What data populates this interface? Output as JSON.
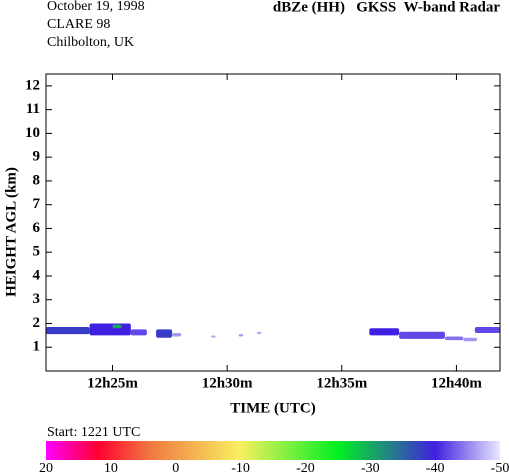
{
  "chart_data": {
    "type": "heatmap",
    "header": [
      "October 19, 1998",
      "CLARE 98",
      "Chilbolton, UK"
    ],
    "title": "dBZe (HH)   GKSS  W-band Radar",
    "x_label": "TIME (UTC)",
    "y_label": "HEIGHT AGL (km)",
    "start_label": "Start: 1221 UTC",
    "xlim": [
      22.1,
      41.9
    ],
    "xticks": [
      {
        "value": 25,
        "label": "12h25m"
      },
      {
        "value": 30,
        "label": "12h30m"
      },
      {
        "value": 35,
        "label": "12h35m"
      },
      {
        "value": 40,
        "label": "12h40m"
      }
    ],
    "ylim": [
      0,
      12.5
    ],
    "yticks": [
      1,
      2,
      3,
      4,
      5,
      6,
      7,
      8,
      9,
      10,
      11,
      12
    ],
    "clim": [
      20,
      -50
    ],
    "cticks": [
      20,
      10,
      0,
      -10,
      -20,
      -30,
      -40,
      -50
    ],
    "colormap": [
      {
        "value": 20,
        "color": "#ff00ff"
      },
      {
        "value": 12,
        "color": "#ff0030"
      },
      {
        "value": 4,
        "color": "#f07840"
      },
      {
        "value": -10,
        "color": "#f8f060"
      },
      {
        "value": -25,
        "color": "#00f020"
      },
      {
        "value": -40,
        "color": "#4020e0"
      },
      {
        "value": -50,
        "color": "#e8e8ff"
      }
    ],
    "cells": [
      {
        "x0": 22.1,
        "x1": 24.0,
        "y0": 1.55,
        "y1": 1.85,
        "value": -38
      },
      {
        "x0": 24.0,
        "x1": 25.8,
        "y0": 1.5,
        "y1": 2.0,
        "value": -40
      },
      {
        "x0": 25.0,
        "x1": 25.4,
        "y0": 1.8,
        "y1": 1.95,
        "value": -30
      },
      {
        "x0": 25.8,
        "x1": 26.5,
        "y0": 1.5,
        "y1": 1.75,
        "value": -42
      },
      {
        "x0": 26.9,
        "x1": 27.6,
        "y0": 1.4,
        "y1": 1.75,
        "value": -38
      },
      {
        "x0": 27.6,
        "x1": 28.0,
        "y0": 1.45,
        "y1": 1.6,
        "value": -46
      },
      {
        "x0": 29.3,
        "x1": 29.5,
        "y0": 1.4,
        "y1": 1.5,
        "value": -47
      },
      {
        "x0": 30.5,
        "x1": 30.7,
        "y0": 1.45,
        "y1": 1.55,
        "value": -46
      },
      {
        "x0": 31.3,
        "x1": 31.5,
        "y0": 1.55,
        "y1": 1.65,
        "value": -47
      },
      {
        "x0": 36.2,
        "x1": 37.5,
        "y0": 1.5,
        "y1": 1.8,
        "value": -40
      },
      {
        "x0": 37.5,
        "x1": 39.5,
        "y0": 1.35,
        "y1": 1.65,
        "value": -42
      },
      {
        "x0": 39.5,
        "x1": 40.3,
        "y0": 1.3,
        "y1": 1.45,
        "value": -44
      },
      {
        "x0": 40.3,
        "x1": 40.9,
        "y0": 1.25,
        "y1": 1.4,
        "value": -46
      },
      {
        "x0": 40.8,
        "x1": 41.9,
        "y0": 1.6,
        "y1": 1.85,
        "value": -42
      }
    ]
  }
}
